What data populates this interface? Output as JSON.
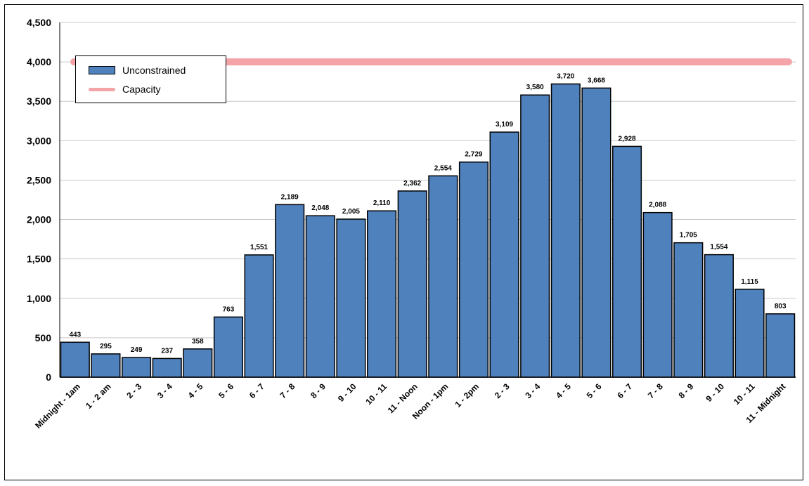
{
  "chart_data": {
    "type": "bar",
    "title": "",
    "categories": [
      "Midnight - 1am",
      "1 - 2 am",
      "2 - 3",
      "3 - 4",
      "4 - 5",
      "5 - 6",
      "6 - 7",
      "7 - 8",
      "8 - 9",
      "9 - 10",
      "10 - 11",
      "11 - Noon",
      "Noon - 1pm",
      "1 - 2pm",
      "2 - 3",
      "3 - 4",
      "4 - 5",
      "5 - 6",
      "6 - 7",
      "7 - 8",
      "8 - 9",
      "9 - 10",
      "10 - 11",
      "11 - Midnight"
    ],
    "series": [
      {
        "name": "Unconstrained",
        "type": "bar",
        "color": "#4f81bd",
        "values": [
          443,
          295,
          249,
          237,
          358,
          763,
          1551,
          2189,
          2048,
          2005,
          2110,
          2362,
          2554,
          2729,
          3109,
          3580,
          3720,
          3668,
          2928,
          2088,
          1705,
          1554,
          1115,
          803
        ],
        "labels": [
          "443",
          "295",
          "249",
          "237",
          "358",
          "763",
          "1,551",
          "2,189",
          "2,048",
          "2,005",
          "2,110",
          "2,362",
          "2,554",
          "2,729",
          "3,109",
          "3,580",
          "3,720",
          "3,668",
          "2,928",
          "2,088",
          "1,705",
          "1,554",
          "1,115",
          "803"
        ]
      },
      {
        "name": "Capacity",
        "type": "line",
        "color": "#f4a3a8",
        "value": 4000
      }
    ],
    "yticks": [
      "0",
      "500",
      "1,000",
      "1,500",
      "2,000",
      "2,500",
      "3,000",
      "3,500",
      "4,000",
      "4,500"
    ],
    "ylim": [
      0,
      4500
    ],
    "grid": true,
    "legend_position": "top-left"
  },
  "legend": {
    "items": [
      {
        "label": "Unconstrained"
      },
      {
        "label": "Capacity"
      }
    ]
  }
}
